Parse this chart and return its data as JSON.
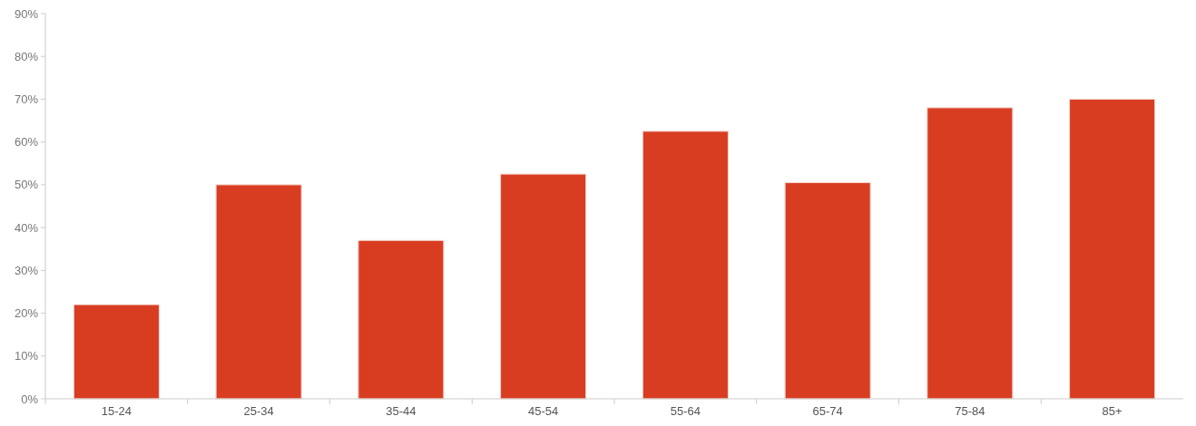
{
  "chart_data": {
    "type": "bar",
    "categories": [
      "15-24",
      "25-34",
      "35-44",
      "45-54",
      "55-64",
      "65-74",
      "75-84",
      "85+"
    ],
    "values": [
      22,
      50,
      37,
      52.5,
      62.5,
      50.5,
      68,
      70
    ],
    "color": "#d83d22",
    "ylim": [
      0,
      90
    ],
    "yticks": [
      {
        "value": 0,
        "label": "0%"
      },
      {
        "value": 10,
        "label": "10%"
      },
      {
        "value": 20,
        "label": "20%"
      },
      {
        "value": 30,
        "label": "30%"
      },
      {
        "value": 40,
        "label": "40%"
      },
      {
        "value": 50,
        "label": "50%"
      },
      {
        "value": 60,
        "label": "60%"
      },
      {
        "value": 70,
        "label": "70%"
      },
      {
        "value": 80,
        "label": "80%"
      },
      {
        "value": 90,
        "label": "90%"
      }
    ],
    "grid": false
  }
}
